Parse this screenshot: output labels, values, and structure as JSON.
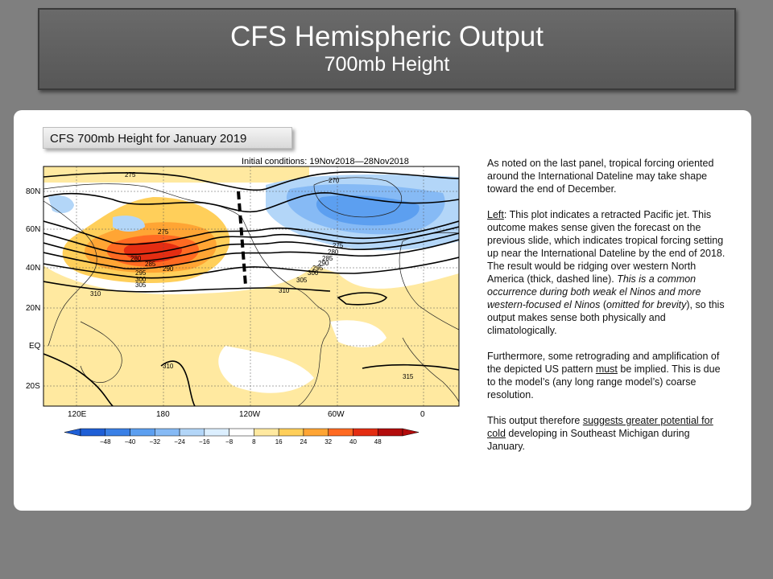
{
  "title": {
    "main": "CFS Hemispheric Output",
    "sub": "700mb Height"
  },
  "caption": "CFS 700mb Height for January 2019",
  "map": {
    "initial_conditions": "Initial conditions: 19Nov2018—28Nov2018",
    "lat_labels": [
      "80N",
      "60N",
      "40N",
      "20N",
      "EQ",
      "20S"
    ],
    "lon_labels": [
      "120E",
      "180",
      "120W",
      "60W",
      "0"
    ],
    "contour_labels": [
      "275",
      "270",
      "275",
      "280",
      "285",
      "290",
      "295",
      "300",
      "305",
      "310",
      "275",
      "280",
      "285",
      "290",
      "295",
      "300",
      "305",
      "310",
      "310",
      "315"
    ],
    "colorbar": {
      "ticks": [
        "−48",
        "−40",
        "−32",
        "−24",
        "−16",
        "−8",
        "8",
        "16",
        "24",
        "32",
        "40",
        "48"
      ],
      "colors": [
        "#1f5fd6",
        "#3a80e6",
        "#5c9ff0",
        "#86baf5",
        "#b3d6f8",
        "#dcefff",
        "#ffffff",
        "#ffe9a0",
        "#ffcf5a",
        "#ffa534",
        "#ff6a22",
        "#e42d12",
        "#b30c0c"
      ]
    }
  },
  "text": {
    "p1": "As noted on the last panel, tropical forcing oriented around the International Dateline may take shape toward the end of December.",
    "p2_lead": "Left",
    "p2_a": ": This plot indicates a retracted Pacific jet. This outcome makes sense given the forecast on the previous slide, which indicates tropical forcing setting up near the International Dateline by the end of 2018. The result would be ridging over western North America (thick, dashed line). ",
    "p2_italic1": "This is a common occurrence during both weak el Ninos and more western-focused el Ninos",
    "p2_b": " (",
    "p2_italic2": "omitted for brevity",
    "p2_c": "), so this output makes sense both physically and climatologically.",
    "p3_a": "Furthermore, some retrograding and amplification of the depicted US pattern ",
    "p3_must": "must",
    "p3_b": " be implied.  This is due to the model’s (any long range model’s) coarse resolution.",
    "p4_a": "This output therefore ",
    "p4_u": "suggests greater potential for cold",
    "p4_b": " developing in Southeast Michigan during January."
  }
}
